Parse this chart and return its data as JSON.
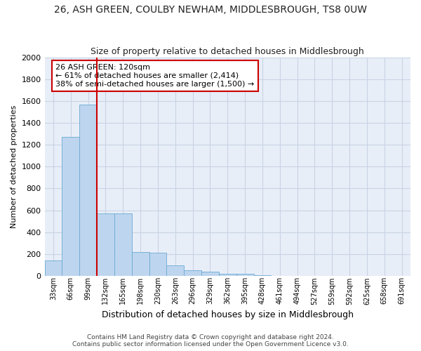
{
  "title": "26, ASH GREEN, COULBY NEWHAM, MIDDLESBROUGH, TS8 0UW",
  "subtitle": "Size of property relative to detached houses in Middlesbrough",
  "xlabel": "Distribution of detached houses by size in Middlesbrough",
  "ylabel": "Number of detached properties",
  "footer_line1": "Contains HM Land Registry data © Crown copyright and database right 2024.",
  "footer_line2": "Contains public sector information licensed under the Open Government Licence v3.0.",
  "annotation_line1": "26 ASH GREEN: 120sqm",
  "annotation_line2": "← 61% of detached houses are smaller (2,414)",
  "annotation_line3": "38% of semi-detached houses are larger (1,500) →",
  "bar_color": "#bdd5ee",
  "bar_edge_color": "#6aaad4",
  "vline_color": "#cc0000",
  "annotation_box_edge": "#cc0000",
  "annotation_box_face": "#ffffff",
  "grid_color": "#c8d4e4",
  "bg_color": "#e8eef8",
  "title_color": "#222222",
  "categories": [
    "33sqm",
    "66sqm",
    "99sqm",
    "132sqm",
    "165sqm",
    "198sqm",
    "230sqm",
    "263sqm",
    "296sqm",
    "329sqm",
    "362sqm",
    "395sqm",
    "428sqm",
    "461sqm",
    "494sqm",
    "527sqm",
    "559sqm",
    "592sqm",
    "625sqm",
    "658sqm",
    "691sqm"
  ],
  "values": [
    140,
    1270,
    1570,
    570,
    570,
    220,
    210,
    95,
    50,
    35,
    20,
    15,
    5,
    0,
    0,
    0,
    0,
    0,
    0,
    0,
    0
  ],
  "ylim": [
    0,
    2000
  ],
  "yticks": [
    0,
    200,
    400,
    600,
    800,
    1000,
    1200,
    1400,
    1600,
    1800,
    2000
  ],
  "vline_x": 3.0,
  "figsize": [
    6.0,
    5.0
  ],
  "dpi": 100
}
